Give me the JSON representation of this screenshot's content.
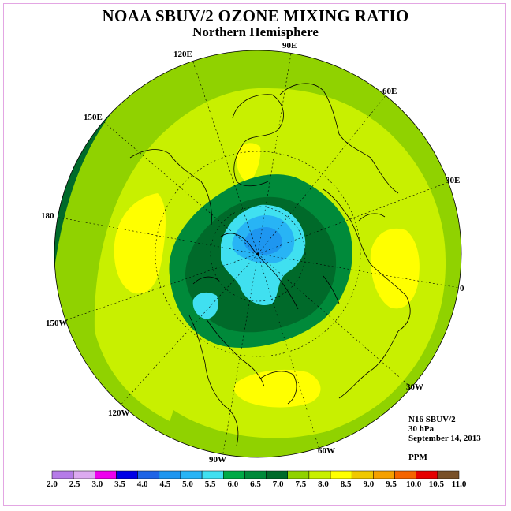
{
  "title": "NOAA SBUV/2 OZONE MIXING RATIO",
  "subtitle": "Northern Hemisphere",
  "longitude_labels": {
    "e90": "90E",
    "e120": "120E",
    "e60": "60E",
    "e150": "150E",
    "e30": "30E",
    "e180": "180",
    "e0": "0",
    "w150": "150W",
    "w30": "30W",
    "w120": "120W",
    "w60": "60W",
    "w90": "90W"
  },
  "info": {
    "instrument": "N16 SBUV/2",
    "level": "30 hPa",
    "date": "September 14, 2013",
    "units": "PPM"
  },
  "colorbar": {
    "labels": [
      "2.0",
      "2.5",
      "3.0",
      "3.5",
      "4.0",
      "4.5",
      "5.0",
      "5.5",
      "6.0",
      "6.5",
      "7.0",
      "7.5",
      "8.0",
      "8.5",
      "9.0",
      "9.5",
      "10.0",
      "10.5",
      "11.0"
    ],
    "colors": [
      "#b57be8",
      "#dcaaf0",
      "#ee00ee",
      "#0000e6",
      "#1e64e6",
      "#1e96f0",
      "#28b4f5",
      "#40e0f0",
      "#00aa46",
      "#008a3a",
      "#006a2a",
      "#90d200",
      "#c8f000",
      "#ffff00",
      "#f0c800",
      "#f5a000",
      "#f56400",
      "#e60000",
      "#785028"
    ]
  },
  "map": {
    "colors": {
      "ocean_edge": "#90d200",
      "outer_dark": "#006a2a",
      "lime": "#c8f000",
      "yellow": "#ffff00",
      "green": "#008a3a",
      "dark_green": "#006a2a",
      "cyan": "#40e0f0",
      "sky": "#28b4f5",
      "blue": "#1e96f0"
    }
  }
}
